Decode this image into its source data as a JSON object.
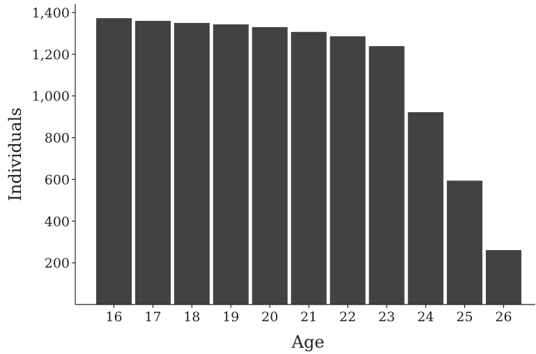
{
  "chart_data": {
    "type": "bar",
    "title": "",
    "xlabel": "Age",
    "ylabel": "Individuals",
    "categories": [
      "16",
      "17",
      "18",
      "19",
      "20",
      "21",
      "22",
      "23",
      "24",
      "25",
      "26"
    ],
    "values": [
      1373,
      1360,
      1350,
      1343,
      1330,
      1307,
      1286,
      1239,
      922,
      594,
      261
    ],
    "ylim": [
      0,
      1440
    ],
    "yticks": [
      200,
      400,
      600,
      800,
      1000,
      1200,
      1400
    ],
    "ytick_labels": [
      "200",
      "400",
      "600",
      "800",
      "1,000",
      "1,200",
      "1,400"
    ],
    "bar_color": "#424242",
    "grid": false,
    "legend": false
  }
}
